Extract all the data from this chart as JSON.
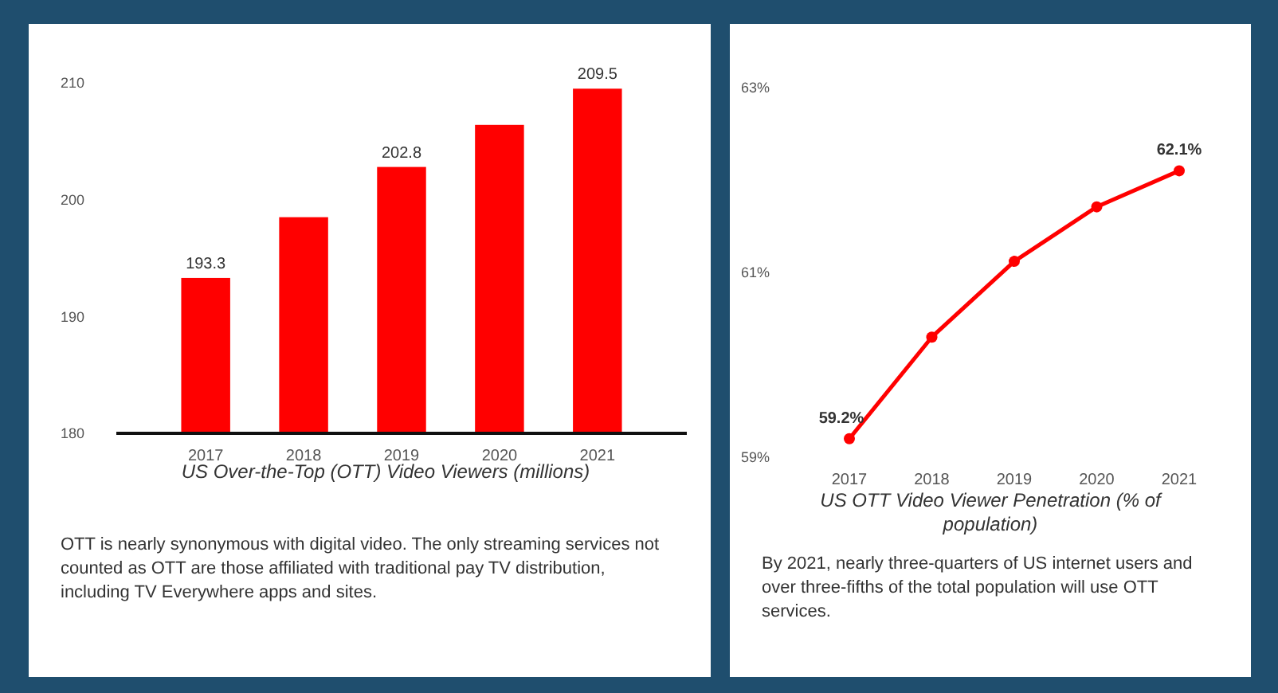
{
  "chart_data": [
    {
      "type": "bar",
      "title": "US Over-the-Top (OTT) Video Viewers (millions)",
      "categories": [
        "2017",
        "2018",
        "2019",
        "2020",
        "2021"
      ],
      "values": [
        193.3,
        198.5,
        202.8,
        206.4,
        209.5
      ],
      "value_labels": [
        "193.3",
        null,
        "202.8",
        null,
        "209.5"
      ],
      "color": "#ff0000",
      "ylim": [
        180,
        210
      ],
      "yticks": [
        180,
        190,
        200,
        210
      ],
      "grid": false,
      "annotations": [
        "OTT is nearly synonymous with digital video. The only streaming services not counted as OTT are those affiliated with traditional pay TV distribution, including TV Everywhere apps and sites."
      ]
    },
    {
      "type": "line",
      "title": "US OTT Video Viewer Penetration (% of population)",
      "categories": [
        "2017",
        "2018",
        "2019",
        "2020",
        "2021"
      ],
      "values": [
        59.2,
        60.3,
        61.12,
        61.71,
        62.1
      ],
      "value_labels": [
        "59.2%",
        null,
        null,
        null,
        "62.1%"
      ],
      "color": "#ff0000",
      "marker": "circle",
      "ylim": [
        59,
        63
      ],
      "yticks": [
        {
          "value": 59,
          "label": "59%"
        },
        {
          "value": 61,
          "label": "61%"
        },
        {
          "value": 63,
          "label": "63%"
        }
      ],
      "grid": false,
      "annotations": [
        "By 2021, nearly three-quarters of US internet users and over three-fifths of the total population will use OTT services."
      ]
    }
  ]
}
